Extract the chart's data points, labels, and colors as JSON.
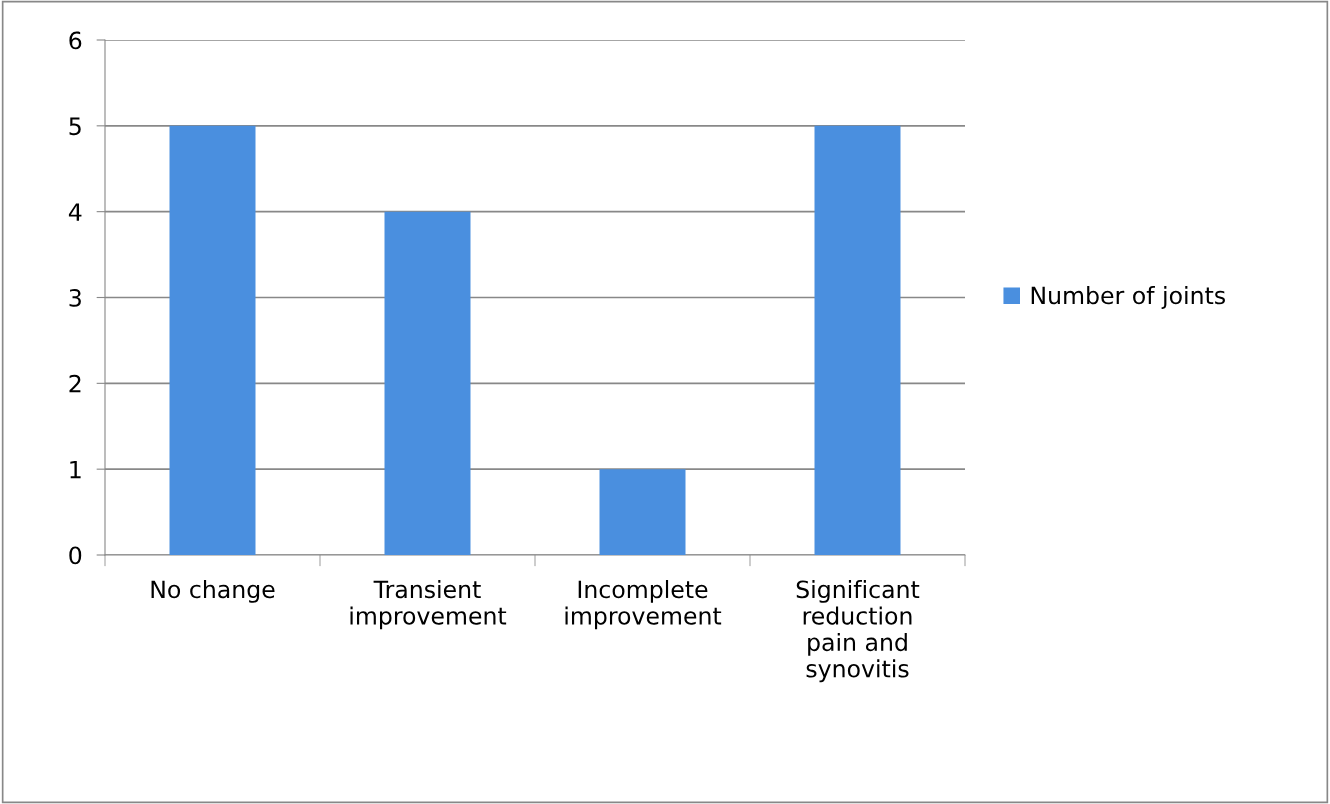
{
  "chart_data": {
    "type": "bar",
    "categories": [
      "No change",
      "Transient\nimprovement",
      "Incomplete\nimprovement",
      "Significant\nreduction\npain and\nsynovitis"
    ],
    "series": [
      {
        "name": "Number of joints",
        "color": "#4a8fdf",
        "values": [
          5,
          4,
          1,
          5
        ]
      }
    ],
    "ylim": [
      0,
      6
    ],
    "yticks": [
      0,
      1,
      2,
      3,
      4,
      5,
      6
    ],
    "grid": "y",
    "legend": "right"
  }
}
